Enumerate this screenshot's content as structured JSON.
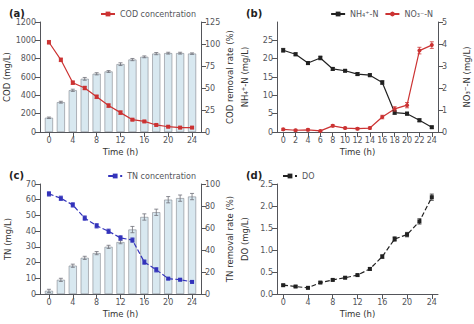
{
  "chart_data": [
    {
      "type": "bar",
      "title": "(a)",
      "xlabel": "Time (h)",
      "ylabel": "COD (mg/L)",
      "y2label": "COD removal rate (%)",
      "x": [
        0,
        2,
        4,
        6,
        8,
        10,
        12,
        14,
        16,
        18,
        20,
        22,
        24
      ],
      "xlim": [
        -1.5,
        25.5
      ],
      "xticks": [
        0,
        4,
        8,
        12,
        16,
        20,
        24
      ],
      "ylim": [
        0,
        1200
      ],
      "yticks": [
        0,
        200,
        400,
        600,
        800,
        1000,
        1200
      ],
      "y2lim": [
        0,
        125
      ],
      "y2ticks": [
        0,
        25,
        50,
        75,
        100,
        125
      ],
      "grid": false,
      "legend": "upper right",
      "series": [
        {
          "type": "bar",
          "color": "#d8e8f0",
          "values": [
            155,
            325,
            455,
            580,
            635,
            660,
            740,
            790,
            820,
            855,
            860,
            860,
            855
          ],
          "errors": [
            8,
            10,
            12,
            15,
            12,
            10,
            15,
            12,
            10,
            12,
            10,
            10,
            8
          ]
        },
        {
          "name": "COD concentration",
          "type": "line",
          "axis": "y2",
          "color": "#cc3333",
          "marker": "square",
          "line_style": "solid",
          "values": [
            102,
            82,
            56,
            50,
            40,
            30,
            22,
            14,
            12,
            8,
            6,
            5,
            5
          ],
          "errors": [
            2,
            2,
            2,
            2,
            2,
            2,
            2,
            1,
            1,
            1,
            1,
            1,
            1
          ]
        }
      ]
    },
    {
      "type": "line",
      "title": "(b)",
      "xlabel": "Time (h)",
      "ylabel": "NH₄⁺-N (mg/L)",
      "y2label": "NO₃⁻-N (mg/L)",
      "x": [
        0,
        2,
        4,
        6,
        8,
        10,
        12,
        14,
        16,
        18,
        20,
        22,
        24
      ],
      "xlim": [
        -1,
        25
      ],
      "xticks": [
        0,
        2,
        4,
        6,
        8,
        10,
        12,
        14,
        16,
        18,
        20,
        22,
        24
      ],
      "ylim": [
        0,
        30
      ],
      "yticks": [
        0,
        5,
        10,
        15,
        20,
        25
      ],
      "y2lim": [
        0,
        5
      ],
      "y2ticks": [
        0,
        1,
        2,
        3,
        4,
        5
      ],
      "grid": false,
      "legend": "upper right",
      "series": [
        {
          "name": "NH₄⁺-N",
          "type": "line",
          "color": "#222222",
          "marker": "square",
          "line_style": "solid",
          "values": [
            22.3,
            21.2,
            18.8,
            20.2,
            17.2,
            16.7,
            15.8,
            15.5,
            13.5,
            5.3,
            5.0,
            3.2,
            1.3
          ],
          "errors": [
            0.5,
            0.4,
            0.4,
            0.5,
            0.4,
            0.3,
            0.4,
            0.4,
            0.5,
            0.5,
            0.4,
            0.4,
            0.3
          ]
        },
        {
          "name": "NO₃⁻-N",
          "type": "line",
          "axis": "y2",
          "color": "#cc3333",
          "marker": "circle",
          "line_style": "solid",
          "values": [
            0.12,
            0.08,
            0.1,
            0.05,
            0.28,
            0.18,
            0.15,
            0.18,
            0.68,
            1.05,
            1.22,
            3.7,
            3.95
          ],
          "errors": [
            0.05,
            0.04,
            0.05,
            0.03,
            0.05,
            0.04,
            0.05,
            0.05,
            0.08,
            0.1,
            0.12,
            0.15,
            0.15
          ]
        }
      ]
    },
    {
      "type": "bar",
      "title": "(c)",
      "xlabel": "Time (h)",
      "ylabel": "TN (mg/L)",
      "y2label": "TN removal rate (%)",
      "x": [
        0,
        2,
        4,
        6,
        8,
        10,
        12,
        14,
        16,
        18,
        20,
        22,
        24
      ],
      "xlim": [
        -1.5,
        25.5
      ],
      "xticks": [
        0,
        4,
        8,
        12,
        16,
        20,
        24
      ],
      "ylim": [
        0,
        70
      ],
      "yticks": [
        0,
        10,
        20,
        30,
        40,
        50,
        60,
        70
      ],
      "y2lim": [
        0,
        100
      ],
      "y2ticks": [
        0,
        20,
        40,
        60,
        80,
        100
      ],
      "grid": false,
      "legend": "upper right",
      "series": [
        {
          "type": "bar",
          "color": "#d8e8f0",
          "values": [
            2,
            9,
            18,
            23,
            26,
            30,
            33,
            41,
            49,
            52,
            60,
            61,
            62
          ],
          "errors": [
            1,
            1,
            1,
            1,
            1,
            1,
            1,
            2,
            2,
            2,
            2,
            2,
            2
          ]
        },
        {
          "name": "TN concentration",
          "type": "line",
          "axis": "y2",
          "color": "#3333bb",
          "marker": "square",
          "line_style": "dashed",
          "values": [
            91,
            87,
            81,
            69,
            62,
            57,
            51,
            49,
            29,
            22,
            14,
            13,
            11
          ],
          "errors": [
            2,
            2,
            2,
            2,
            2,
            2,
            2,
            2,
            2,
            2,
            1,
            1,
            1
          ]
        }
      ]
    },
    {
      "type": "line",
      "title": "(d)",
      "xlabel": "Time (h)",
      "ylabel": "DO (mg/L)",
      "x": [
        0,
        2,
        4,
        6,
        8,
        10,
        12,
        14,
        16,
        18,
        20,
        22,
        24
      ],
      "xlim": [
        -1,
        25
      ],
      "xticks": [
        0,
        4,
        8,
        12,
        16,
        20,
        24
      ],
      "ylim": [
        0.0,
        2.5
      ],
      "yticks": [
        {
          "value": 0,
          "label": "0.0"
        },
        0.5,
        {
          "value": 1,
          "label": "1.0"
        },
        1.5,
        {
          "value": 2,
          "label": "2.0"
        },
        2.5
      ],
      "grid": false,
      "legend": "upper left",
      "series": [
        {
          "name": "DO",
          "type": "line",
          "color": "#222222",
          "marker": "square",
          "line_style": "dashed",
          "values": [
            0.2,
            0.17,
            0.14,
            0.26,
            0.32,
            0.37,
            0.43,
            0.57,
            0.85,
            1.25,
            1.35,
            1.65,
            2.2
          ],
          "errors": [
            0.02,
            0.02,
            0.02,
            0.02,
            0.02,
            0.02,
            0.02,
            0.03,
            0.04,
            0.05,
            0.05,
            0.06,
            0.07
          ]
        }
      ]
    }
  ]
}
